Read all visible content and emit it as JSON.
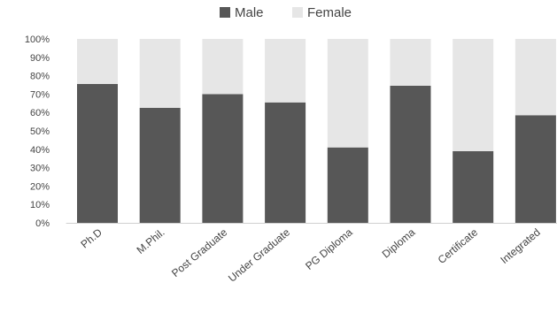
{
  "chart_data": {
    "type": "bar",
    "stacked": true,
    "percent": true,
    "categories": [
      "Ph.D",
      "M.Phil.",
      "Post Graduate",
      "Under Graduate",
      "PG Diploma",
      "Diploma",
      "Certificate",
      "Integrated"
    ],
    "series": [
      {
        "name": "Male",
        "values": [
          75.5,
          62.5,
          70,
          65.5,
          41,
          74.5,
          39,
          58.5
        ],
        "color": "#575757"
      },
      {
        "name": "Female",
        "values": [
          24.5,
          37.5,
          30,
          34.5,
          59,
          25.5,
          61,
          41.5
        ],
        "color": "#e6e6e6"
      }
    ],
    "y_ticks": [
      "0%",
      "10%",
      "20%",
      "30%",
      "40%",
      "50%",
      "60%",
      "70%",
      "80%",
      "90%",
      "100%"
    ],
    "ylim": [
      0,
      100
    ],
    "grid": false,
    "legend_position": "top-center"
  }
}
